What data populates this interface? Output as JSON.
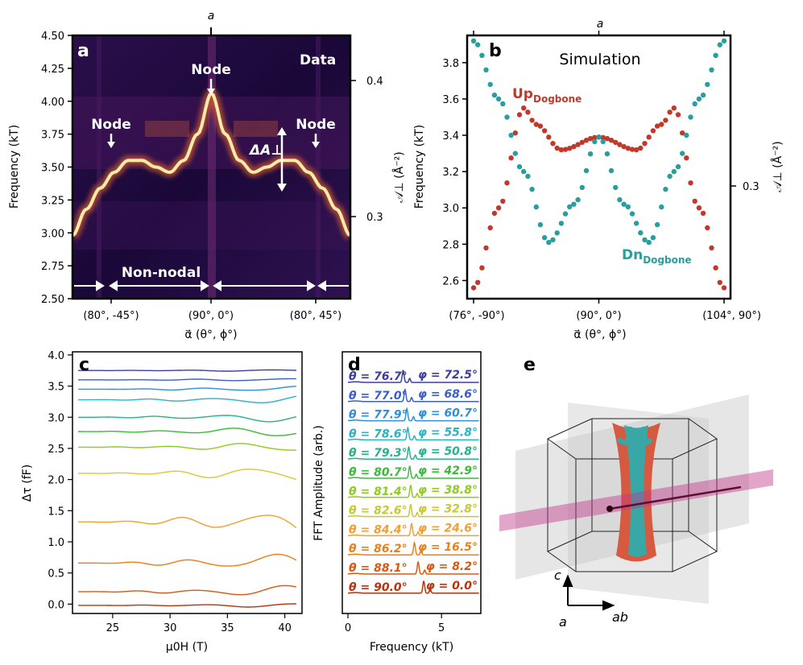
{
  "panel_labels": {
    "a": "a",
    "b": "b",
    "c": "c",
    "d": "d",
    "e": "e"
  },
  "chart_data": [
    {
      "id": "a",
      "type": "heatmap",
      "top_label": "a",
      "overlay_title": "Data",
      "ylabel": "Frequency (kT)",
      "ylim": [
        2.5,
        4.5
      ],
      "yticks": [
        "2.50",
        "2.75",
        "3.00",
        "3.25",
        "3.50",
        "3.75",
        "4.00",
        "4.25",
        "4.50"
      ],
      "right_ticks": [
        "0.3",
        "0.4"
      ],
      "xlabel": "α⃗ (θ°, ϕ°)",
      "xticks": [
        "(80°, -45°)",
        "(90°, 0°)",
        "(80°, 45°)"
      ],
      "annotations": {
        "node": "Node",
        "delta": "ΔA⊥",
        "non_nodal": "Non-nodal"
      },
      "ridge_note": "bright frequency ridge peaking at node",
      "ridge_u": [
        0,
        0.05,
        0.1,
        0.15,
        0.2,
        0.25,
        0.3,
        0.35,
        0.4,
        0.45,
        0.5,
        0.55,
        0.6,
        0.65,
        0.7,
        0.75,
        0.8,
        0.85,
        0.9,
        0.95,
        1.0
      ],
      "ridge_f": [
        2.98,
        3.18,
        3.34,
        3.46,
        3.55,
        3.55,
        3.5,
        3.46,
        3.55,
        3.75,
        4.06,
        3.75,
        3.55,
        3.46,
        3.5,
        3.55,
        3.55,
        3.46,
        3.34,
        3.18,
        2.98
      ]
    },
    {
      "id": "b",
      "type": "scatter",
      "top_label": "a",
      "title": "Simulation",
      "ylabel": "Frequency (kT)",
      "ylim": [
        2.5,
        3.95
      ],
      "yticks": [
        "2.6",
        "2.8",
        "3.0",
        "3.2",
        "3.4",
        "3.6",
        "3.8"
      ],
      "right_ticks": [
        "0.3"
      ],
      "xlabel": "α⃗ (θ°, ϕ°)",
      "xticks": [
        "(76°, -90°)",
        "(90°, 0°)",
        "(104°, 90°)"
      ],
      "series": [
        {
          "name": "Up",
          "sub": "Dogbone",
          "color": "#c0392b",
          "u": [
            0,
            0.1,
            0.2,
            0.25,
            0.35,
            0.5,
            0.65,
            0.75,
            0.8,
            0.9,
            1.0
          ],
          "f": [
            2.56,
            3.0,
            3.55,
            3.46,
            3.32,
            3.39,
            3.32,
            3.46,
            3.55,
            3.0,
            2.56
          ]
        },
        {
          "name": "Dn",
          "sub": "Dogbone",
          "color": "#2a9d9d",
          "u": [
            0,
            0.1,
            0.2,
            0.3,
            0.4,
            0.5,
            0.6,
            0.7,
            0.8,
            0.9,
            1.0
          ],
          "f": [
            3.92,
            3.6,
            3.2,
            2.81,
            3.02,
            3.39,
            3.02,
            2.81,
            3.2,
            3.6,
            3.92
          ]
        }
      ]
    },
    {
      "id": "c",
      "type": "line",
      "ylabel": "Δτ (fF)",
      "xlabel": "μ0H (T)",
      "xlim": [
        21.5,
        41.5
      ],
      "ylim": [
        -0.15,
        4.05
      ],
      "xticks": [
        "25",
        "30",
        "35",
        "40"
      ],
      "yticks": [
        "0.0",
        "0.5",
        "1.0",
        "1.5",
        "2.0",
        "2.5",
        "3.0",
        "3.5",
        "4.0"
      ],
      "offsets": [
        3.75,
        3.6,
        3.45,
        3.28,
        3.0,
        2.77,
        2.52,
        2.1,
        1.32,
        0.66,
        0.2,
        -0.02
      ],
      "amplitudes": [
        0.02,
        0.03,
        0.05,
        0.08,
        0.09,
        0.1,
        0.1,
        0.16,
        0.24,
        0.18,
        0.11,
        0.04
      ],
      "colors": [
        "#3b3f9e",
        "#3a5fc8",
        "#2f8fd8",
        "#2ab3c4",
        "#26b38a",
        "#3cba3c",
        "#8fcc20",
        "#d9c83a",
        "#f0a030",
        "#e8801a",
        "#d85a12",
        "#b8340e"
      ]
    },
    {
      "id": "d",
      "type": "line",
      "ylabel": "FFT Amplitude (arb.)",
      "xlabel": "Frequency (kT)",
      "xlim": [
        -0.3,
        7.1
      ],
      "xticks": [
        "0",
        "5"
      ],
      "theta_labels": [
        "θ = 76.7°",
        "θ = 77.0°",
        "θ = 77.9°",
        "θ = 78.6°",
        "θ = 79.3°",
        "θ = 80.7°",
        "θ = 81.4°",
        "θ = 82.6°",
        "θ = 84.4°",
        "θ = 86.2°",
        "θ = 88.1°",
        "θ = 90.0°"
      ],
      "phi_labels": [
        "φ = 72.5°",
        "φ = 68.6°",
        "φ = 60.7°",
        "φ = 55.8°",
        "φ = 50.8°",
        "φ = 42.9°",
        "φ = 38.8°",
        "φ = 32.8°",
        "φ = 24.6°",
        "φ = 16.5°",
        "φ = 8.2°",
        "φ = 0.0°"
      ],
      "peak_kT": [
        2.95,
        3.05,
        3.15,
        3.2,
        3.25,
        3.3,
        3.35,
        3.35,
        3.4,
        3.55,
        3.75,
        4.05
      ],
      "colors": [
        "#3b3f9e",
        "#3a5fc8",
        "#2f8fd8",
        "#2ab3c4",
        "#26b38a",
        "#3cba3c",
        "#8fcc20",
        "#c8c830",
        "#f0a030",
        "#e8801a",
        "#d85a12",
        "#b8340e"
      ]
    }
  ],
  "panel_e": {
    "axes": {
      "c": "c",
      "a": "a",
      "ab": "ab"
    }
  }
}
